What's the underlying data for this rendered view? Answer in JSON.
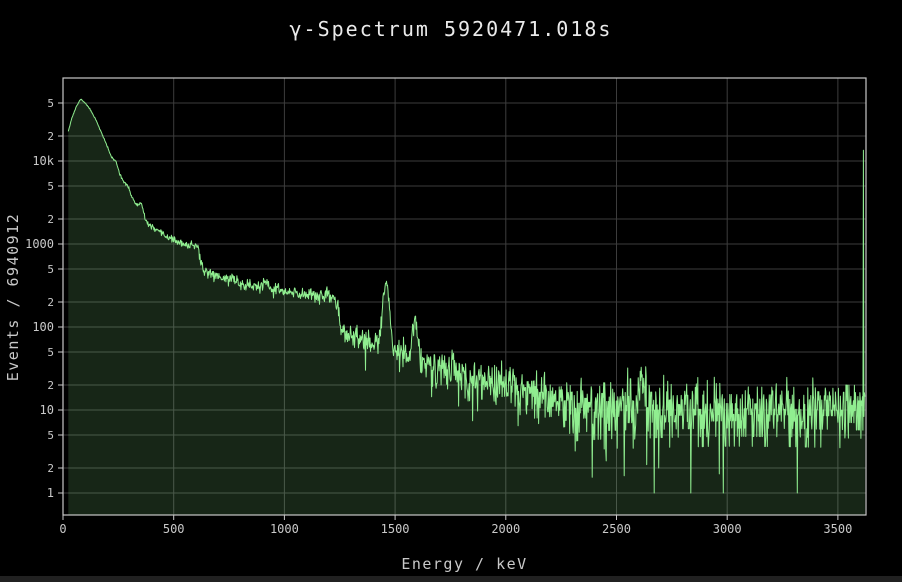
{
  "chart": {
    "title": "γ-Spectrum 5920471.018s",
    "live_time_seconds": "5920471.018",
    "y_axis_title": "Events / 6940912",
    "total_events": "6940912",
    "x_axis_title": "Energy / keV"
  },
  "chart_data": {
    "type": "area",
    "title": "γ-Spectrum 5920471.018s",
    "xlabel": "Energy / keV",
    "ylabel": "Events / 6940912",
    "x_unit": "keV",
    "xlim": [
      0,
      3627
    ],
    "ylim_log": [
      0.543,
      100000
    ],
    "y_scale": "log",
    "grid": true,
    "x_ticks": [
      {
        "v": 0,
        "label": "0"
      },
      {
        "v": 500,
        "label": "500"
      },
      {
        "v": 1000,
        "label": "1000"
      },
      {
        "v": 1500,
        "label": "1500"
      },
      {
        "v": 2000,
        "label": "2000"
      },
      {
        "v": 2500,
        "label": "2500"
      },
      {
        "v": 3000,
        "label": "3000"
      },
      {
        "v": 3500,
        "label": "3500"
      }
    ],
    "y_ticks": [
      {
        "v": 1,
        "label": "1",
        "major": true
      },
      {
        "v": 2,
        "label": "2"
      },
      {
        "v": 5,
        "label": "5"
      },
      {
        "v": 10,
        "label": "10",
        "major": true
      },
      {
        "v": 20,
        "label": "2"
      },
      {
        "v": 50,
        "label": "5"
      },
      {
        "v": 100,
        "label": "100",
        "major": true
      },
      {
        "v": 200,
        "label": "2"
      },
      {
        "v": 500,
        "label": "5"
      },
      {
        "v": 1000,
        "label": "1000",
        "major": true
      },
      {
        "v": 2000,
        "label": "2"
      },
      {
        "v": 5000,
        "label": "5"
      },
      {
        "v": 10000,
        "label": "10k",
        "major": true
      },
      {
        "v": 20000,
        "label": "2"
      },
      {
        "v": 50000,
        "label": "5"
      }
    ],
    "colors": {
      "background": "#000000",
      "line": "#90ee90",
      "fill": "rgba(144,238,144,0.16)",
      "grid": "#3d3d3d",
      "border": "#c8c8c8",
      "tick_text": "#c9c9c9",
      "title_text": "#eaeaea"
    },
    "spectrum": {
      "start_kev": 24,
      "end_kev": 3624,
      "bin_kev": 2.26,
      "noise_seed": 11,
      "noise_power": 1.5,
      "continuum_anchors": [
        [
          24,
          23000
        ],
        [
          40,
          33000
        ],
        [
          60,
          45000
        ],
        [
          80,
          56000
        ],
        [
          100,
          50000
        ],
        [
          120,
          43000
        ],
        [
          150,
          31000
        ],
        [
          175,
          21500
        ],
        [
          200,
          15000
        ],
        [
          220,
          11000
        ],
        [
          245,
          8200
        ],
        [
          270,
          5900
        ],
        [
          300,
          4100
        ],
        [
          340,
          2700
        ],
        [
          380,
          1800
        ],
        [
          420,
          1450
        ],
        [
          470,
          1230
        ],
        [
          520,
          1060
        ],
        [
          560,
          930
        ],
        [
          600,
          800
        ],
        [
          613,
          640
        ],
        [
          622,
          500
        ],
        [
          660,
          450
        ],
        [
          700,
          410
        ],
        [
          750,
          370
        ],
        [
          800,
          330
        ],
        [
          900,
          300
        ],
        [
          1000,
          260
        ],
        [
          1100,
          245
        ],
        [
          1232,
          228
        ],
        [
          1252,
          92
        ],
        [
          1290,
          82
        ],
        [
          1330,
          74
        ],
        [
          1380,
          66
        ],
        [
          1430,
          60
        ],
        [
          1470,
          55
        ],
        [
          1520,
          47
        ],
        [
          1570,
          44
        ],
        [
          1650,
          34
        ],
        [
          1750,
          28
        ],
        [
          1880,
          23
        ],
        [
          2000,
          19
        ],
        [
          2100,
          16.5
        ],
        [
          2200,
          14.5
        ],
        [
          2350,
          11.5
        ],
        [
          2500,
          10.5
        ],
        [
          2700,
          10
        ],
        [
          3000,
          9.3
        ],
        [
          3300,
          9.6
        ],
        [
          3624,
          10.5
        ]
      ],
      "peaks_kev_amp_sigma": [
        [
          238,
          1000,
          8
        ],
        [
          295,
          500,
          8
        ],
        [
          352,
          700,
          8
        ],
        [
          583,
          180,
          8
        ],
        [
          609,
          260,
          8
        ],
        [
          768,
          45,
          9
        ],
        [
          911,
          40,
          10
        ],
        [
          968,
          22,
          10
        ],
        [
          1120,
          22,
          10
        ],
        [
          1460,
          280,
          12
        ],
        [
          1588,
          85,
          10
        ],
        [
          1764,
          9,
          10
        ],
        [
          2614,
          18,
          12
        ]
      ],
      "forced_points": [
        [
          2690,
          2
        ],
        [
          2835,
          1
        ]
      ],
      "overflow_bin": {
        "kev": 3615,
        "counts": 13500
      }
    }
  }
}
